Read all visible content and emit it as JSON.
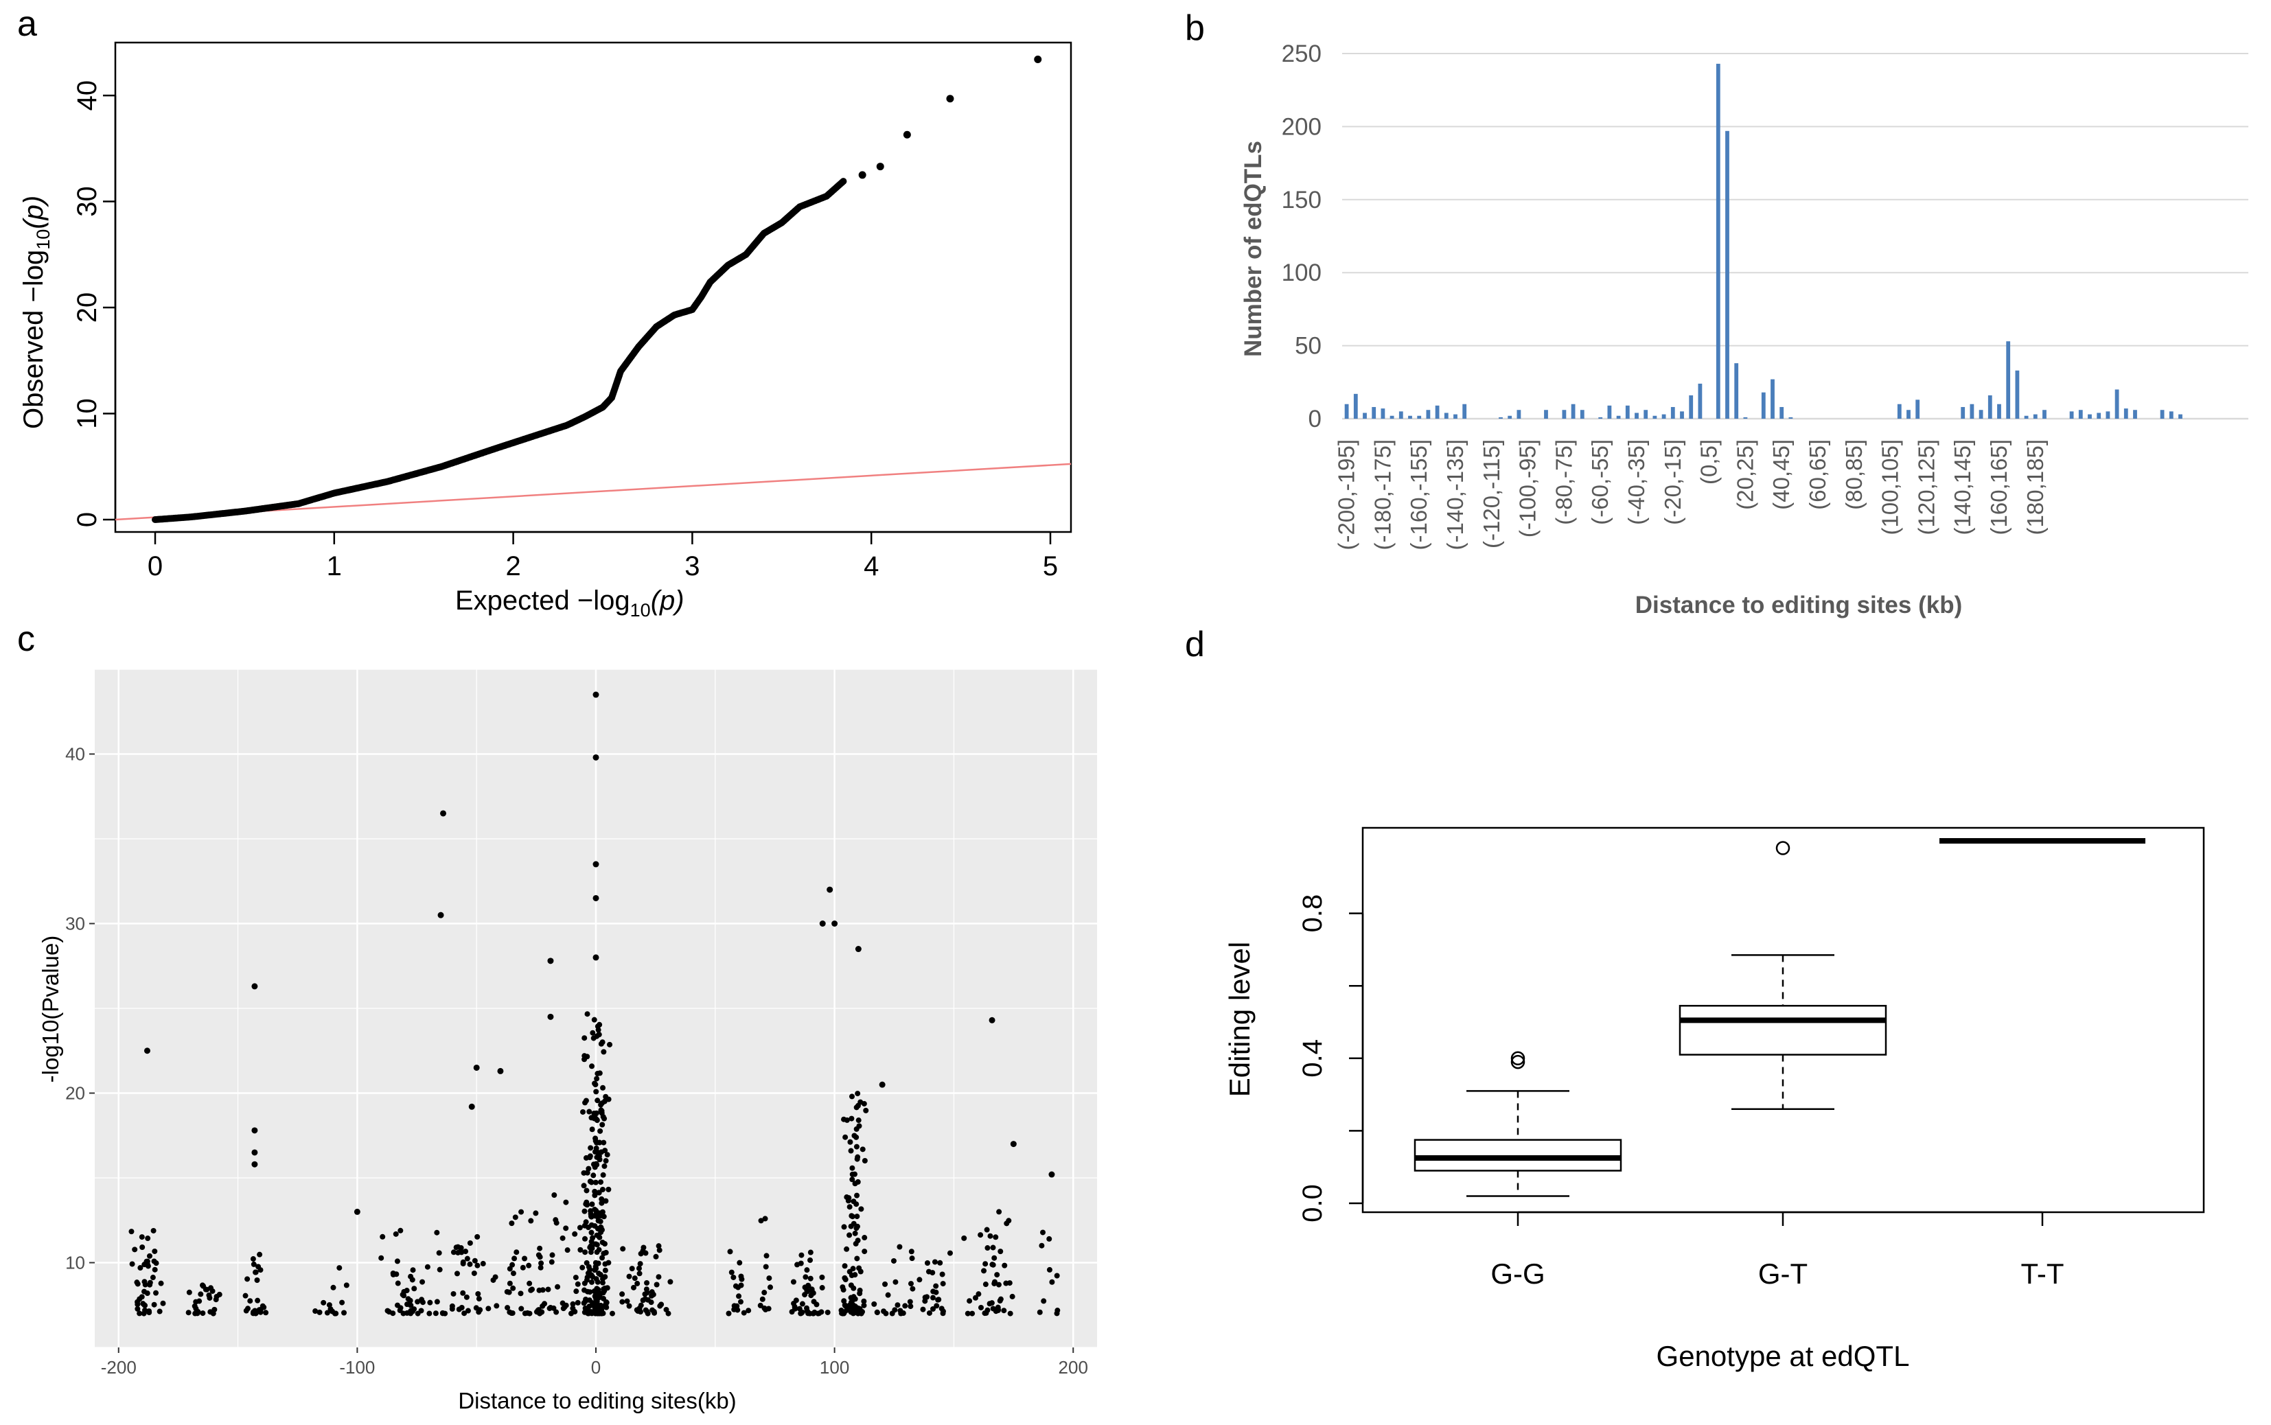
{
  "panels": {
    "a": "a",
    "b": "b",
    "c": "c",
    "d": "d"
  },
  "colors": {
    "qq_points": "#000000",
    "qq_line": "#f08080",
    "bar_fill": "#4a7ebb",
    "gg_panel_bg": "#ebebeb",
    "gg_grid": "#ffffff"
  },
  "chart_data": [
    {
      "id": "a",
      "type": "scatter",
      "title": "",
      "xlabel": "Expected  −log",
      "xlabel_sub": "10",
      "xlabel_tail": "(p)",
      "ylabel": "Observed  −log",
      "ylabel_sub": "10",
      "ylabel_tail": "(p)",
      "xlim": [
        0,
        5
      ],
      "ylim": [
        0,
        43.5
      ],
      "xticks": [
        0,
        1,
        2,
        3,
        4,
        5
      ],
      "yticks": [
        0,
        10,
        20,
        30,
        40
      ],
      "reference_line": {
        "slope": 1,
        "intercept": 0
      },
      "curve": [
        [
          0,
          0
        ],
        [
          0.2,
          0.25
        ],
        [
          0.5,
          0.8
        ],
        [
          0.8,
          1.5
        ],
        [
          1.0,
          2.5
        ],
        [
          1.3,
          3.6
        ],
        [
          1.6,
          5.0
        ],
        [
          1.9,
          6.7
        ],
        [
          2.1,
          7.8
        ],
        [
          2.3,
          8.9
        ],
        [
          2.4,
          9.7
        ],
        [
          2.5,
          10.6
        ],
        [
          2.55,
          11.5
        ],
        [
          2.6,
          14.0
        ],
        [
          2.7,
          16.3
        ],
        [
          2.8,
          18.2
        ],
        [
          2.9,
          19.3
        ],
        [
          3.0,
          19.8
        ],
        [
          3.05,
          21.0
        ],
        [
          3.1,
          22.4
        ],
        [
          3.2,
          24.0
        ],
        [
          3.3,
          25.0
        ],
        [
          3.4,
          27.0
        ],
        [
          3.5,
          28.0
        ],
        [
          3.6,
          29.5
        ],
        [
          3.75,
          30.5
        ],
        [
          3.85,
          32.0
        ]
      ],
      "top_points": [
        [
          3.95,
          32.5
        ],
        [
          4.05,
          33.3
        ],
        [
          4.2,
          36.3
        ],
        [
          4.44,
          39.7
        ],
        [
          4.93,
          43.4
        ]
      ]
    },
    {
      "id": "b",
      "type": "bar",
      "title": "",
      "xlabel": "Distance to editing sites (kb)",
      "ylabel": "Number of edQTLs",
      "ylim": [
        0,
        250
      ],
      "yticks": [
        0,
        50,
        100,
        150,
        200,
        250
      ],
      "tick_labels": [
        "(-200,-195]",
        "(-180,-175]",
        "(-160,-155]",
        "(-140,-135]",
        "(-120,-115]",
        "(-100,-95]",
        "(-80,-75]",
        "(-60,-55]",
        "(-40,-35]",
        "(-20,-15]",
        "(0,5]",
        "(20,25]",
        "(40,45]",
        "(60,65]",
        "(80,85]",
        "(100,105]",
        "(120,125]",
        "(140,145]",
        "(160,165]",
        "(180,185]"
      ],
      "bins_start": -200,
      "bin_width": 5,
      "values": [
        10,
        17,
        4,
        8,
        7,
        2,
        5,
        2,
        2,
        6,
        9,
        4,
        3,
        10,
        0,
        0,
        0,
        1,
        2,
        6,
        0,
        0,
        6,
        0,
        6,
        10,
        6,
        0,
        1,
        9,
        2,
        9,
        4,
        6,
        2,
        3,
        8,
        5,
        16,
        24,
        0,
        243,
        197,
        38,
        1,
        0,
        18,
        27,
        8,
        1,
        0,
        0,
        0,
        0,
        0,
        0,
        0,
        0,
        0,
        0,
        0,
        10,
        6,
        13,
        0,
        0,
        0,
        0,
        8,
        10,
        6,
        16,
        10,
        53,
        33,
        2,
        3,
        6,
        0,
        0,
        5,
        6,
        3,
        4,
        5,
        20,
        7,
        6,
        0,
        0,
        6,
        5,
        3,
        0,
        0,
        0,
        0,
        0,
        0,
        0
      ]
    },
    {
      "id": "c",
      "type": "scatter",
      "title": "",
      "xlabel": "Distance to editing sites(kb)",
      "ylabel": "-log10(Pvalue)",
      "xlim": [
        -210,
        210
      ],
      "ylim": [
        5,
        45
      ],
      "xticks": [
        -200,
        -100,
        0,
        100,
        200
      ],
      "yticks": [
        10,
        20,
        30,
        40
      ],
      "notable_points": [
        [
          0,
          43.5
        ],
        [
          0,
          39.8
        ],
        [
          0,
          33.5
        ],
        [
          0,
          31.5
        ],
        [
          0,
          28
        ],
        [
          -64,
          36.5
        ],
        [
          -65,
          30.5
        ],
        [
          98,
          32
        ],
        [
          95,
          30
        ],
        [
          100,
          30
        ],
        [
          110,
          28.5
        ],
        [
          -143,
          26.3
        ],
        [
          -188,
          22.5
        ],
        [
          166,
          24.3
        ],
        [
          -19,
          27.8
        ],
        [
          -19,
          24.5
        ],
        [
          -40,
          21.3
        ],
        [
          -50,
          21.5
        ],
        [
          -52,
          19.2
        ],
        [
          120,
          20.5
        ],
        [
          -143,
          17.8
        ],
        [
          -143,
          16.5
        ],
        [
          -143,
          15.8
        ],
        [
          175,
          17
        ],
        [
          191,
          15.2
        ],
        [
          -100,
          13
        ]
      ]
    },
    {
      "id": "d",
      "type": "box",
      "title": "",
      "xlabel": "Genotype at edQTL",
      "ylabel": "Editing level",
      "ylim": [
        0,
        1.0
      ],
      "yticks": [
        "0.0",
        "0.4",
        "0.8"
      ],
      "ytick_values": [
        0,
        0.4,
        0.8
      ],
      "categories": [
        "G-G",
        "G-T",
        "T-T"
      ],
      "boxes": [
        {
          "whisker_low": 0.02,
          "q1": 0.09,
          "median": 0.125,
          "q3": 0.175,
          "whisker_high": 0.31,
          "outliers": [
            0.39,
            0.4
          ]
        },
        {
          "whisker_low": 0.26,
          "q1": 0.41,
          "median": 0.505,
          "q3": 0.545,
          "whisker_high": 0.685,
          "outliers": [
            0.98
          ]
        },
        {
          "whisker_low": 1.0,
          "q1": 1.0,
          "median": 1.0,
          "q3": 1.0,
          "whisker_high": 1.0,
          "outliers": []
        }
      ]
    }
  ]
}
